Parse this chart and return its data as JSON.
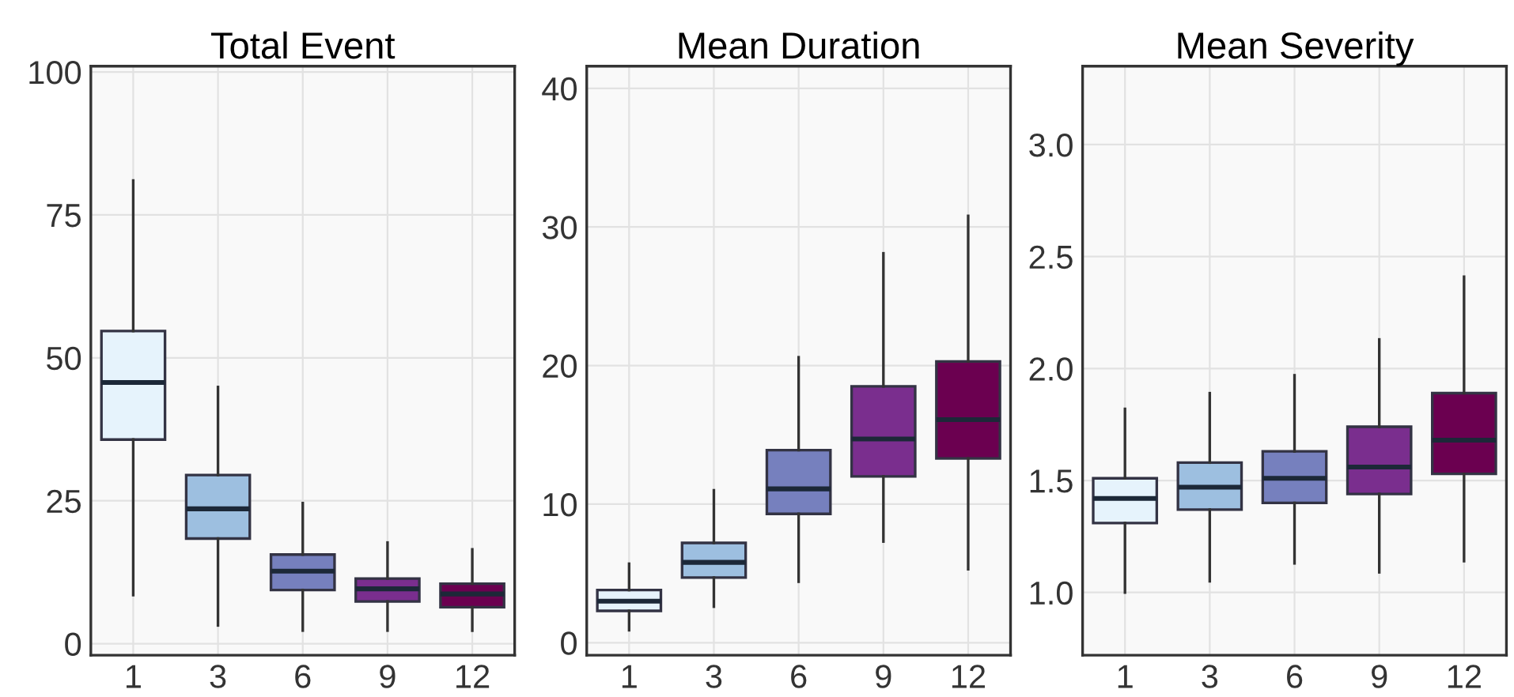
{
  "chart_data": [
    {
      "type": "box",
      "title": "Total Event",
      "categories": [
        "1",
        "3",
        "6",
        "9",
        "12"
      ],
      "colors": [
        "#e6f3fc",
        "#9dbfe0",
        "#7680be",
        "#7a2e8e",
        "#6b0050"
      ],
      "ylim": [
        -2,
        101
      ],
      "yticks": [
        0,
        25,
        50,
        75,
        100
      ],
      "grid": true,
      "boxes": [
        {
          "low": 8.5,
          "q1": 35.7,
          "median": 45.7,
          "q3": 54.7,
          "high": 81
        },
        {
          "low": 3.2,
          "q1": 18.4,
          "median": 23.6,
          "q3": 29.5,
          "high": 44.9
        },
        {
          "low": 2.3,
          "q1": 9.4,
          "median": 12.7,
          "q3": 15.6,
          "high": 24.6
        },
        {
          "low": 2.3,
          "q1": 7.4,
          "median": 9.6,
          "q3": 11.4,
          "high": 17.7
        },
        {
          "low": 2.3,
          "q1": 6.4,
          "median": 8.7,
          "q3": 10.5,
          "high": 16.5
        }
      ]
    },
    {
      "type": "box",
      "title": "Mean Duration",
      "categories": [
        "1",
        "3",
        "6",
        "9",
        "12"
      ],
      "colors": [
        "#e6f3fc",
        "#9dbfe0",
        "#7680be",
        "#7a2e8e",
        "#6b0050"
      ],
      "ylim": [
        -0.9,
        41.6
      ],
      "yticks": [
        0,
        10,
        20,
        30,
        40
      ],
      "grid": true,
      "boxes": [
        {
          "low": 0.9,
          "q1": 2.3,
          "median": 3.0,
          "q3": 3.8,
          "high": 5.7
        },
        {
          "low": 2.6,
          "q1": 4.7,
          "median": 5.8,
          "q3": 7.2,
          "high": 11.0
        },
        {
          "low": 4.4,
          "q1": 9.3,
          "median": 11.1,
          "q3": 13.9,
          "high": 20.6
        },
        {
          "low": 7.3,
          "q1": 12.0,
          "median": 14.7,
          "q3": 18.5,
          "high": 28.1
        },
        {
          "low": 5.3,
          "q1": 13.3,
          "median": 16.1,
          "q3": 20.3,
          "high": 30.8
        }
      ]
    },
    {
      "type": "box",
      "title": "Mean Severity",
      "categories": [
        "1",
        "3",
        "6",
        "9",
        "12"
      ],
      "colors": [
        "#e6f3fc",
        "#9dbfe0",
        "#7680be",
        "#7a2e8e",
        "#6b0050"
      ],
      "ylim": [
        0.72,
        3.35
      ],
      "yticks": [
        {
          "value": 1,
          "label": "1.0"
        },
        {
          "value": 1.5,
          "label": "1.5"
        },
        {
          "value": 2,
          "label": "2.0"
        },
        {
          "value": 2.5,
          "label": "2.5"
        },
        {
          "value": 3,
          "label": "3.0"
        }
      ],
      "grid": true,
      "boxes": [
        {
          "low": 1.0,
          "q1": 1.31,
          "median": 1.42,
          "q3": 1.51,
          "high": 1.82
        },
        {
          "low": 1.05,
          "q1": 1.37,
          "median": 1.47,
          "q3": 1.58,
          "high": 1.89
        },
        {
          "low": 1.13,
          "q1": 1.4,
          "median": 1.51,
          "q3": 1.63,
          "high": 1.97
        },
        {
          "low": 1.09,
          "q1": 1.44,
          "median": 1.56,
          "q3": 1.74,
          "high": 2.13
        },
        {
          "low": 1.14,
          "q1": 1.53,
          "median": 1.68,
          "q3": 1.89,
          "high": 2.41
        }
      ]
    }
  ]
}
